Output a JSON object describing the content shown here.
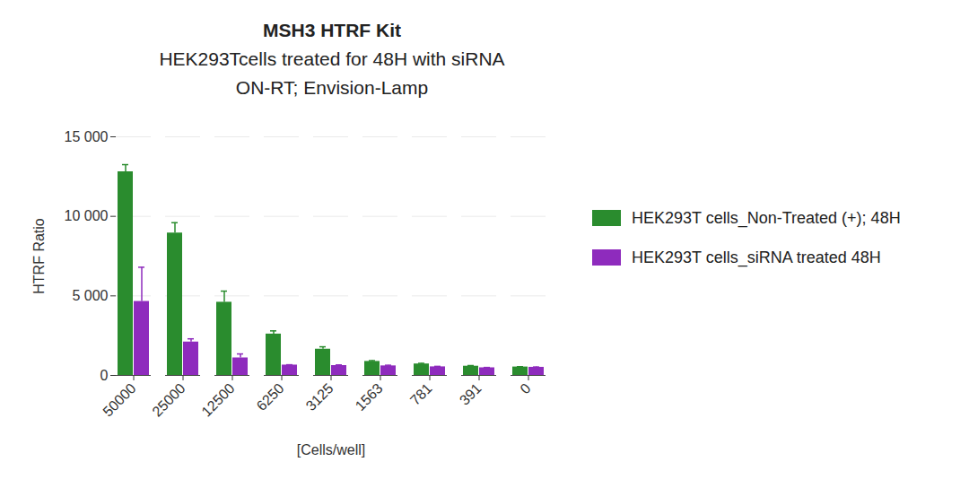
{
  "chart_data": {
    "type": "bar",
    "title": "MSH3 HTRF Kit",
    "subtitle": [
      "HEK293Tcells treated for 48H with siRNA",
      "ON-RT; Envision-Lamp"
    ],
    "x_label": "[Cells/well]",
    "y_label": "HTRF Ratio",
    "categories": [
      "50000",
      "25000",
      "12500",
      "6250",
      "3125",
      "1563",
      "781",
      "391",
      "0"
    ],
    "series": [
      {
        "name": "HEK293T cells_Non-Treated (+); 48H",
        "color": "#2a8c2e",
        "values": [
          12800,
          8950,
          4600,
          2600,
          1650,
          880,
          720,
          580,
          530
        ],
        "errors": [
          450,
          650,
          700,
          200,
          150,
          50,
          40,
          40,
          20
        ]
      },
      {
        "name": "HEK293T cells_siRNA treated 48H",
        "color": "#8e2bbd",
        "values": [
          4650,
          2100,
          1100,
          650,
          620,
          600,
          540,
          480,
          510
        ],
        "errors": [
          2150,
          200,
          250,
          20,
          40,
          40,
          30,
          20,
          20
        ]
      }
    ],
    "ylim": [
      0,
      15000
    ],
    "yticks": [
      0,
      {
        "value": 5000,
        "label": "5 000"
      },
      {
        "value": 10000,
        "label": "10 000"
      },
      {
        "value": 15000,
        "label": "15 000"
      }
    ],
    "grid": true,
    "legend": "right"
  }
}
